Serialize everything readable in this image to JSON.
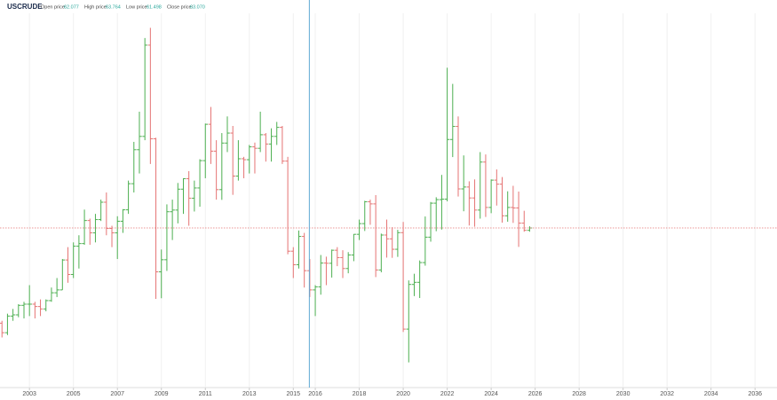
{
  "header": {
    "symbol": "USCRUDE",
    "open_label": "Open price:",
    "open": "62.077",
    "high_label": "High price:",
    "high": "63.764",
    "low_label": "Low price:",
    "low": "61.498",
    "close_label": "Close price:",
    "close": "63.070"
  },
  "chart_data": {
    "type": "ohlc",
    "x": [
      2001.75,
      2002,
      2002.25,
      2002.5,
      2002.75,
      2003,
      2003.25,
      2003.5,
      2003.75,
      2004,
      2004.25,
      2004.5,
      2004.75,
      2005,
      2005.25,
      2005.5,
      2005.75,
      2006,
      2006.25,
      2006.5,
      2006.75,
      2007,
      2007.25,
      2007.5,
      2007.75,
      2008,
      2008.25,
      2008.5,
      2008.75,
      2009,
      2009.25,
      2009.5,
      2009.75,
      2010,
      2010.25,
      2010.5,
      2010.75,
      2011,
      2011.25,
      2011.5,
      2011.75,
      2012,
      2012.25,
      2012.5,
      2012.75,
      2013,
      2013.25,
      2013.5,
      2013.75,
      2014,
      2014.25,
      2014.5,
      2014.75,
      2015,
      2015.25,
      2015.5,
      2015.75,
      2016,
      2016.25,
      2016.5,
      2016.75,
      2017,
      2017.25,
      2017.5,
      2017.75,
      2018,
      2018.25,
      2018.5,
      2018.75,
      2019,
      2019.25,
      2019.5,
      2019.75,
      2020,
      2020.25,
      2020.5,
      2020.75,
      2021,
      2021.25,
      2021.5,
      2021.75,
      2022,
      2022.25,
      2022.5,
      2022.75,
      2023,
      2023.25,
      2023.5,
      2023.75,
      2024,
      2024.25,
      2024.5,
      2024.75,
      2025,
      2025.25,
      2025.5,
      2025.75
    ],
    "open": [
      23,
      19,
      26,
      26.5,
      30.5,
      31,
      31,
      30,
      29,
      32.5,
      35.8,
      37,
      49.6,
      43.5,
      55.4,
      56.5,
      66.2,
      61,
      66.6,
      73.9,
      62.9,
      61,
      65.9,
      70.7,
      81.7,
      96,
      101.6,
      140,
      100.6,
      44.6,
      49.7,
      69.9,
      70.6,
      79.4,
      83.8,
      75.6,
      79.9,
      91.4,
      106.7,
      95.4,
      79.2,
      98.8,
      103,
      84.9,
      92.2,
      91.8,
      97.2,
      96.6,
      102.3,
      98.4,
      101.6,
      105.4,
      91.2,
      53.3,
      47.6,
      59.5,
      45.1,
      37,
      38.3,
      48.3,
      48.2,
      53.7,
      50.6,
      46,
      51.7,
      60.4,
      64.9,
      74.1,
      73.2,
      45.4,
      60.1,
      58.5,
      54.1,
      61.1,
      20.5,
      39.3,
      40.2,
      48.5,
      59.2,
      73.5,
      75,
      75.2,
      100.3,
      105.8,
      79.5,
      80.3,
      75.7,
      70.6,
      90.8,
      71.7,
      83.2,
      81.5,
      68.2,
      71.7,
      71.5,
      65.1,
      62.077
    ],
    "high": [
      24,
      27,
      29,
      31,
      32,
      39,
      32,
      33,
      33,
      38,
      42,
      50,
      55,
      57,
      60,
      70.8,
      67,
      69,
      75,
      78,
      64,
      68,
      71,
      83,
      99.3,
      112,
      143,
      147.3,
      101,
      54,
      73,
      75,
      82,
      84,
      87,
      83,
      92,
      107,
      114,
      100,
      103,
      110,
      106,
      100,
      93,
      98,
      99,
      112,
      103,
      105,
      107.7,
      106,
      93,
      55,
      62,
      61,
      50,
      39,
      51.7,
      51,
      54,
      55,
      53.7,
      52.9,
      60.5,
      66.6,
      74.5,
      75,
      76.9,
      60.7,
      66.6,
      63.4,
      62.3,
      65.6,
      41,
      43.8,
      49.4,
      67.9,
      74,
      76,
      85.4,
      130.5,
      123.7,
      110,
      93.6,
      82.7,
      83.5,
      95,
      94,
      83.5,
      87.7,
      84.5,
      78.5,
      80.8,
      78.4,
      70.3,
      63.764
    ],
    "low": [
      17,
      18,
      24,
      25.5,
      25,
      26,
      25,
      26,
      28,
      32,
      34,
      37,
      40,
      42,
      46,
      56,
      56,
      57,
      66,
      60,
      55,
      50,
      61,
      69,
      78,
      86,
      100,
      90,
      33.2,
      33.5,
      45,
      58,
      65,
      69,
      64,
      70,
      72,
      84,
      90,
      75,
      74.9,
      95,
      77,
      83,
      84,
      86,
      86,
      95,
      91,
      91,
      98,
      90,
      52,
      42,
      46,
      38,
      34,
      26,
      35,
      39,
      42.2,
      47,
      42,
      44,
      49.1,
      58,
      61.8,
      64.4,
      42.4,
      44.4,
      50.6,
      50.5,
      50.9,
      19.3,
      6.5,
      34.4,
      33.6,
      47.2,
      57.3,
      61.7,
      62.4,
      74.3,
      92.9,
      76.3,
      70.1,
      64.1,
      63.6,
      67,
      67.7,
      69.3,
      72.5,
      65.3,
      65.7,
      65.2,
      55.1,
      61.5,
      61.498
    ],
    "close": [
      19,
      26,
      26.5,
      30.5,
      31,
      31,
      30,
      29,
      32.5,
      35.8,
      37,
      49.6,
      43.5,
      55.4,
      56.5,
      66.2,
      61,
      66.6,
      73.9,
      62.9,
      61,
      65.9,
      70.7,
      81.7,
      96,
      101.6,
      140,
      100.6,
      44.6,
      49.7,
      69.9,
      70.6,
      79.4,
      83.8,
      75.6,
      79.9,
      91.4,
      106.7,
      95.4,
      79.2,
      98.8,
      103,
      84.9,
      92.2,
      91.8,
      97.2,
      96.6,
      102.3,
      98.4,
      101.6,
      105.4,
      91.2,
      53.3,
      47.6,
      59.5,
      45.1,
      37,
      38.3,
      48.3,
      48.2,
      53.7,
      50.6,
      46,
      51.7,
      60.4,
      64.9,
      74.1,
      73.2,
      45.4,
      60.1,
      58.5,
      54.1,
      61.1,
      20.5,
      39.3,
      40.2,
      48.5,
      59.2,
      73.5,
      75,
      75.2,
      100.3,
      105.8,
      79.5,
      80.3,
      75.7,
      70.6,
      90.8,
      71.7,
      83.2,
      81.5,
      68.2,
      71.7,
      71.5,
      65.1,
      62.077,
      63.07
    ],
    "up_color": "#4caf50",
    "down_color": "#e57373",
    "xlim": [
      2001.66,
      2037.0
    ],
    "ylim": [
      -4.1,
      153.4
    ],
    "xticks": [
      2003,
      2005,
      2007,
      2009,
      2011,
      2013,
      2015,
      2016,
      2018,
      2020,
      2022,
      2024,
      2026,
      2028,
      2030,
      2032,
      2034,
      2036
    ],
    "grid": true,
    "price_line": true,
    "crosshair_x": 2015.73
  }
}
